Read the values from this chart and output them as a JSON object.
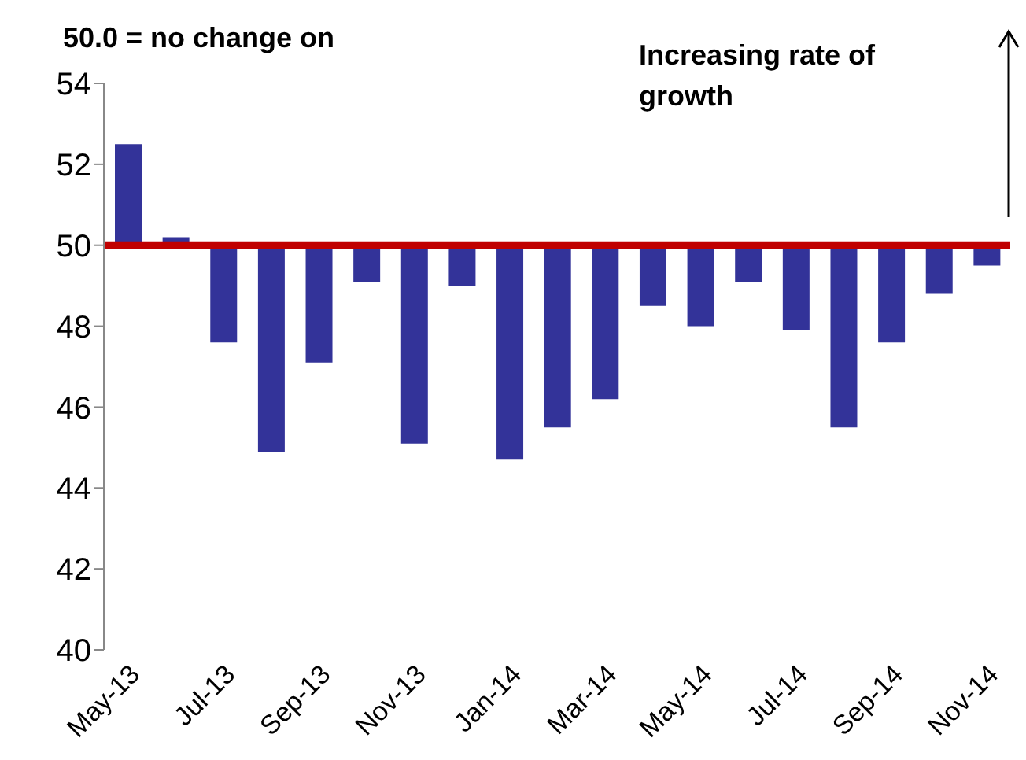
{
  "chart_data": {
    "type": "bar",
    "title": "50.0 = no change on",
    "annotations": [
      "Increasing rate of growth"
    ],
    "categories": [
      "May-13",
      null,
      "Jul-13",
      null,
      "Sep-13",
      null,
      "Nov-13",
      null,
      "Jan-14",
      null,
      "Mar-14",
      null,
      "May-14",
      null,
      "Jul-14",
      null,
      "Sep-14",
      null,
      "Nov-14"
    ],
    "base": [
      50,
      50,
      50,
      50,
      50,
      50,
      50,
      50,
      50,
      50,
      50,
      50,
      50,
      50,
      50,
      50,
      50,
      50,
      50
    ],
    "values": [
      2.5,
      0.2,
      -2.4,
      -5.1,
      -2.9,
      -0.9,
      -4.9,
      -1.0,
      -5.3,
      -4.5,
      -3.8,
      -1.5,
      -2.0,
      -0.9,
      -2.1,
      -4.5,
      -2.4,
      -1.2,
      -0.5
    ],
    "color": "#333399",
    "ylim": [
      40,
      54
    ],
    "yticks": [
      40,
      42,
      44,
      46,
      48,
      50,
      52,
      54
    ],
    "ref_lines": [
      {
        "axis": "y",
        "value": 50,
        "color": "#c00000"
      }
    ],
    "grid": false
  }
}
